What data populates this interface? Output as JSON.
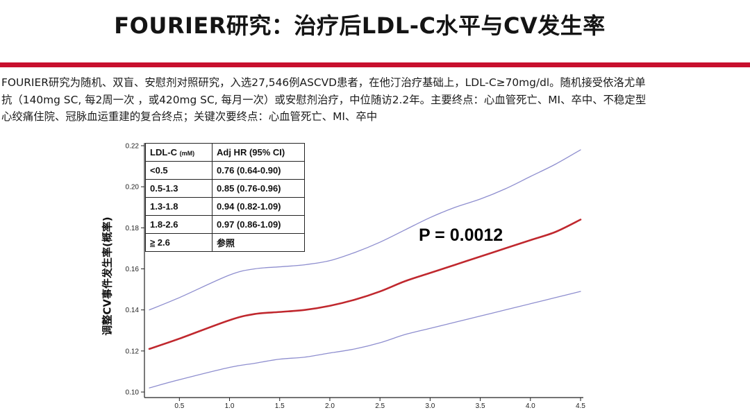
{
  "title": "FOURIER研究：治疗后LDL-C水平与CV发生率",
  "description": [
    "FOURIER研究为随机、双盲、安慰剂对照研究，入选27,546例ASCVD患者，在他汀治疗基础上，LDL-C≥70mg/dl。随机接受依洛尤单",
    "抗（140mg SC, 每2周一次 ，或420mg SC, 每月一次）或安慰剂治疗，中位随访2.2年。主要终点：心血管死亡、MI、卒中、不稳定型",
    "心绞痛住院、冠脉血运重建的复合终点；关键次要终点：心血管死亡、MI、卒中"
  ],
  "table": {
    "header": {
      "col1": "LDL-C",
      "col1_unit": "(mM)",
      "col2": "Adj HR (95% CI)"
    },
    "rows": [
      {
        "ldl": "<0.5",
        "hr": "0.76 (0.64-0.90)"
      },
      {
        "ldl": "0.5-1.3",
        "hr": "0.85 (0.76-0.96)"
      },
      {
        "ldl": "1.3-1.8",
        "hr": "0.94 (0.82-1.09)"
      },
      {
        "ldl": "1.8-2.6",
        "hr": "0.97 (0.86-1.09)"
      },
      {
        "ldl": "2.6",
        "ldl_prefix": "≥",
        "hr": "参照"
      }
    ]
  },
  "p_value": "P = 0.0012",
  "chart_data": {
    "type": "line",
    "ylabel": "调整CV事件发生率(概率)",
    "xlabel": "",
    "xlim": [
      0.2,
      4.5
    ],
    "ylim": [
      0.1,
      0.22
    ],
    "x_ticks": [
      "0.5",
      "1.0",
      "1.5",
      "2.0",
      "2.5",
      "3.0",
      "3.5",
      "4.0",
      "4.5"
    ],
    "x_tick_values": [
      0.5,
      1.0,
      1.5,
      2.0,
      2.5,
      3.0,
      3.5,
      4.0,
      4.5
    ],
    "y_ticks": [
      "0.10",
      "0.12",
      "0.14",
      "0.16",
      "0.18",
      "0.20",
      "0.22"
    ],
    "y_tick_values": [
      0.1,
      0.12,
      0.14,
      0.16,
      0.18,
      0.2,
      0.22
    ],
    "series": [
      {
        "role": "upper-ci",
        "color": "#8e8ecf",
        "x": [
          0.2,
          0.5,
          1.0,
          1.25,
          1.5,
          1.75,
          2.0,
          2.25,
          2.5,
          2.75,
          3.0,
          3.25,
          3.5,
          3.75,
          4.0,
          4.25,
          4.5
        ],
        "y": [
          0.14,
          0.146,
          0.157,
          0.16,
          0.161,
          0.162,
          0.164,
          0.168,
          0.173,
          0.179,
          0.185,
          0.19,
          0.194,
          0.199,
          0.205,
          0.211,
          0.218
        ]
      },
      {
        "role": "estimate",
        "color": "#c0282e",
        "x": [
          0.2,
          0.5,
          1.0,
          1.25,
          1.5,
          1.75,
          2.0,
          2.25,
          2.5,
          2.75,
          3.0,
          3.25,
          3.5,
          3.75,
          4.0,
          4.25,
          4.5
        ],
        "y": [
          0.121,
          0.126,
          0.135,
          0.138,
          0.139,
          0.14,
          0.142,
          0.145,
          0.149,
          0.154,
          0.158,
          0.162,
          0.166,
          0.17,
          0.174,
          0.178,
          0.184
        ]
      },
      {
        "role": "lower-ci",
        "color": "#8e8ecf",
        "x": [
          0.2,
          0.5,
          1.0,
          1.25,
          1.5,
          1.75,
          2.0,
          2.25,
          2.5,
          2.75,
          3.0,
          3.25,
          3.5,
          3.75,
          4.0,
          4.25,
          4.5
        ],
        "y": [
          0.102,
          0.106,
          0.112,
          0.114,
          0.116,
          0.117,
          0.119,
          0.121,
          0.124,
          0.128,
          0.131,
          0.134,
          0.137,
          0.14,
          0.143,
          0.146,
          0.149
        ]
      }
    ]
  }
}
